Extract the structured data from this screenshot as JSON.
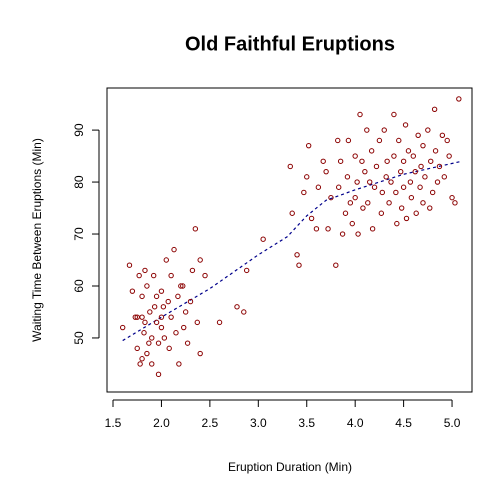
{
  "chart_data": {
    "type": "scatter",
    "title": "Old Faithful Eruptions",
    "xlabel": "Eruption Duration (Min)",
    "ylabel": "Waiting Time Between Eruptions (Min)",
    "xlim": [
      1.438,
      5.206
    ],
    "ylim": [
      39.6,
      98.1
    ],
    "xticks": [
      1.5,
      {
        "value": 2,
        "label": "2.0"
      },
      2.5,
      {
        "value": 3,
        "label": "3.0"
      },
      3.5,
      {
        "value": 4,
        "label": "4.0"
      },
      4.5,
      {
        "value": 5,
        "label": "5.0"
      }
    ],
    "yticks": [
      50,
      60,
      70,
      80,
      90
    ],
    "points": {
      "color": "#8b0000",
      "x": [
        1.6,
        1.67,
        1.7,
        1.73,
        1.75,
        1.75,
        1.77,
        1.78,
        1.8,
        1.8,
        1.8,
        1.82,
        1.83,
        1.83,
        1.85,
        1.85,
        1.87,
        1.88,
        1.9,
        1.9,
        1.92,
        1.93,
        1.95,
        1.95,
        1.97,
        1.97,
        2.0,
        2.0,
        2.0,
        2.02,
        2.03,
        2.05,
        2.07,
        2.08,
        2.1,
        2.1,
        2.13,
        2.15,
        2.17,
        2.18,
        2.2,
        2.22,
        2.23,
        2.25,
        2.27,
        2.3,
        2.32,
        2.35,
        2.37,
        2.4,
        2.4,
        2.45,
        2.6,
        2.78,
        2.85,
        2.88,
        3.05,
        3.33,
        3.35,
        3.4,
        3.42,
        3.47,
        3.5,
        3.52,
        3.55,
        3.6,
        3.62,
        3.67,
        3.7,
        3.72,
        3.75,
        3.8,
        3.82,
        3.83,
        3.85,
        3.87,
        3.9,
        3.92,
        3.93,
        3.95,
        3.97,
        4.0,
        4.0,
        4.02,
        4.03,
        4.05,
        4.07,
        4.08,
        4.1,
        4.12,
        4.13,
        4.15,
        4.17,
        4.18,
        4.2,
        4.22,
        4.25,
        4.27,
        4.28,
        4.3,
        4.32,
        4.33,
        4.35,
        4.37,
        4.4,
        4.4,
        4.42,
        4.43,
        4.45,
        4.47,
        4.48,
        4.5,
        4.5,
        4.52,
        4.53,
        4.55,
        4.57,
        4.58,
        4.6,
        4.62,
        4.63,
        4.65,
        4.67,
        4.68,
        4.7,
        4.7,
        4.72,
        4.75,
        4.77,
        4.78,
        4.8,
        4.82,
        4.83,
        4.85,
        4.87,
        4.9,
        4.92,
        4.95,
        4.97,
        5.0,
        5.03,
        5.07
      ],
      "y": [
        52,
        64,
        59,
        54,
        54,
        48,
        62,
        45,
        46,
        54,
        58,
        51,
        63,
        53,
        60,
        47,
        49,
        55,
        50,
        45,
        62,
        56,
        53,
        58,
        49,
        43,
        54,
        59,
        52,
        56,
        50,
        65,
        57,
        48,
        54,
        62,
        67,
        51,
        58,
        45,
        60,
        60,
        52,
        55,
        49,
        57,
        63,
        71,
        53,
        65,
        47,
        62,
        53,
        56,
        55,
        63,
        69,
        83,
        74,
        66,
        64,
        78,
        81,
        87,
        73,
        71,
        79,
        84,
        82,
        71,
        77,
        64,
        88,
        79,
        84,
        70,
        74,
        81,
        88,
        76,
        72,
        77,
        85,
        80,
        70,
        93,
        84,
        75,
        82,
        90,
        76,
        80,
        86,
        71,
        79,
        83,
        88,
        74,
        78,
        90,
        81,
        84,
        76,
        80,
        93,
        85,
        78,
        72,
        88,
        82,
        75,
        84,
        79,
        91,
        73,
        86,
        80,
        77,
        85,
        82,
        74,
        89,
        79,
        83,
        87,
        76,
        81,
        90,
        75,
        84,
        78,
        94,
        86,
        80,
        83,
        89,
        81,
        88,
        85,
        77,
        76,
        96
      ]
    },
    "line": {
      "color": "#00008b",
      "x": [
        1.6,
        2.0,
        2.5,
        3.0,
        3.3,
        3.5,
        3.7,
        4.0,
        4.5,
        5.1
      ],
      "y": [
        49.5,
        54,
        59.5,
        66,
        69.5,
        73.5,
        76.5,
        78.5,
        81.5,
        84
      ]
    }
  }
}
